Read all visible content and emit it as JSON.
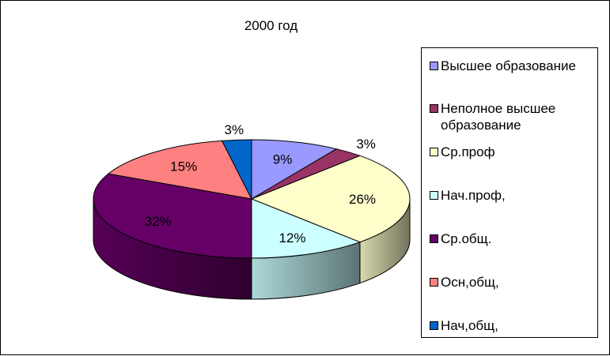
{
  "chart_data": {
    "type": "pie",
    "title": "2000 год",
    "categories": [
      "Высшее образование",
      "Неполное  высшее образование",
      "Ср.проф",
      "Нач.проф,",
      "Ср.общ.",
      "Осн,общ,",
      "Нач,общ,"
    ],
    "values": [
      9,
      3,
      26,
      12,
      32,
      15,
      3
    ],
    "data_labels": [
      "9%",
      "3%",
      "26%",
      "12%",
      "32%",
      "15%",
      "3%"
    ],
    "colors": [
      "#9999ff",
      "#993366",
      "#ffffcc",
      "#ccffff",
      "#660066",
      "#ff8080",
      "#0066cc"
    ],
    "legend_placement": "right",
    "style": "3d-pie"
  }
}
